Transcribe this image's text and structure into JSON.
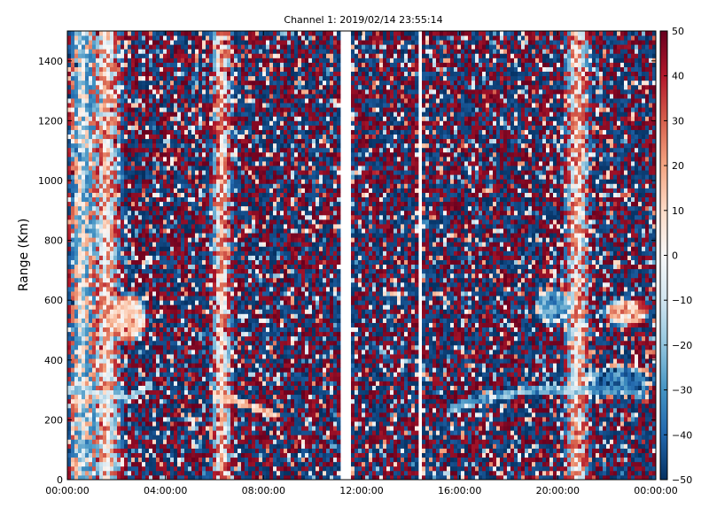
{
  "chart_data": {
    "type": "heatmap",
    "title": "Channel 1: 2019/02/14 23:55:14",
    "ylabel": "Range (Km)",
    "xlabel": "",
    "x_ticks": [
      "00:00:00",
      "04:00:00",
      "08:00:00",
      "12:00:00",
      "16:00:00",
      "20:00:00",
      "00:00:00"
    ],
    "x_range_hours": [
      0,
      24
    ],
    "y_ticks": [
      0,
      200,
      400,
      600,
      800,
      1000,
      1200,
      1400
    ],
    "ylim": [
      0,
      1500
    ],
    "colorbar": {
      "range": [
        -50,
        50
      ],
      "ticks": [
        50,
        40,
        30,
        20,
        10,
        0,
        -10,
        -20,
        -30,
        -40,
        -50
      ],
      "colormap": "RdBu_r",
      "colors": [
        "#053061",
        "#2166ac",
        "#4393c3",
        "#92c5de",
        "#d1e5f0",
        "#f7f7f7",
        "#fddbc7",
        "#f4a582",
        "#d6604d",
        "#b2182b",
        "#67001f"
      ]
    },
    "data_gaps_hours": [
      [
        11.2,
        11.6
      ],
      [
        14.3,
        14.5
      ]
    ],
    "features": [
      {
        "type": "band",
        "x_center_hours": 1.6,
        "width_hours": 0.7,
        "value": 18
      },
      {
        "type": "band",
        "x_center_hours": 6.3,
        "width_hours": 0.5,
        "value": 25
      },
      {
        "type": "band",
        "x_center_hours": 20.8,
        "width_hours": 0.6,
        "value": 18
      },
      {
        "type": "band",
        "x_center_hours": 0.6,
        "width_hours": 0.6,
        "value": -15
      },
      {
        "type": "trace",
        "value": -18,
        "points": [
          [
            0,
            300
          ],
          [
            1.5,
            290
          ],
          [
            2.5,
            275
          ],
          [
            3.5,
            320
          ]
        ]
      },
      {
        "type": "trace",
        "value": 15,
        "points": [
          [
            6.0,
            285
          ],
          [
            7.0,
            260
          ],
          [
            8.0,
            230
          ],
          [
            8.5,
            210
          ]
        ]
      },
      {
        "type": "trace",
        "value": -25,
        "points": [
          [
            15.5,
            230
          ],
          [
            16.5,
            260
          ],
          [
            18.0,
            290
          ],
          [
            19.5,
            300
          ],
          [
            21.0,
            300
          ],
          [
            23.5,
            290
          ]
        ]
      },
      {
        "type": "blob",
        "x_hours": 2.5,
        "y_km": 540,
        "rx_hours": 0.8,
        "ry_km": 90,
        "value": 15
      },
      {
        "type": "blob",
        "x_hours": 19.8,
        "y_km": 580,
        "rx_hours": 0.8,
        "ry_km": 70,
        "value": -30
      },
      {
        "type": "blob",
        "x_hours": 22.5,
        "y_km": 330,
        "rx_hours": 1.5,
        "ry_km": 60,
        "value": -42
      },
      {
        "type": "blob",
        "x_hours": 22.8,
        "y_km": 560,
        "rx_hours": 1.0,
        "ry_km": 50,
        "value": 20
      }
    ]
  }
}
